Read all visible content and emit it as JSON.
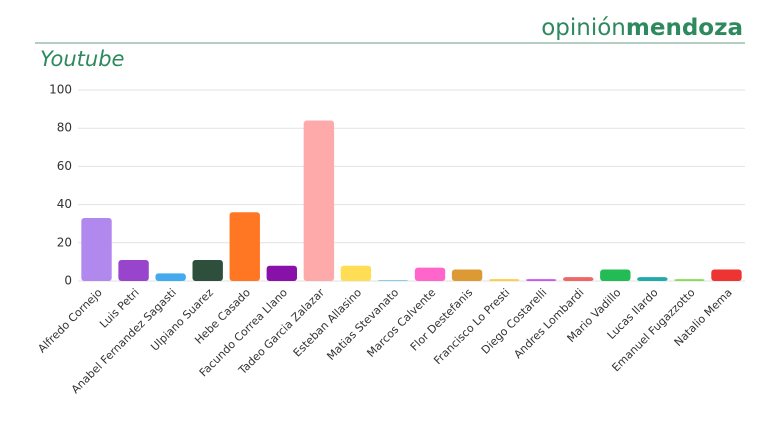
{
  "header": {
    "brand_light": "opinión",
    "brand_bold": "mendoza"
  },
  "chart_data": {
    "type": "bar",
    "title": "Youtube",
    "categories": [
      "Alfredo Cornejo",
      "Luis Petri",
      "Anabel Fernandez Sagasti",
      "Ulpiano Suarez",
      "Hebe Casado",
      "Facundo Correa Llano",
      "Tadeo Garcia Zalazar",
      "Esteban Allasino",
      "Matias Stevanato",
      "Marcos Calvente",
      "Flor Destefanis",
      "Francisco Lo Presti",
      "Diego Costarelli",
      "Andres Lombardi",
      "Mario Vadillo",
      "Lucas Ilardo",
      "Emanuel Fugazzotto",
      "Natalio Mema"
    ],
    "values": [
      33,
      11,
      4,
      11,
      36,
      8,
      84,
      8,
      0.5,
      7,
      6,
      1,
      1,
      2,
      6,
      2,
      1,
      6
    ],
    "colors": [
      "#b088ee",
      "#9944cc",
      "#44aaee",
      "#2d4f3c",
      "#ff7722",
      "#8811aa",
      "#ffaaaa",
      "#ffdd55",
      "#88ccee",
      "#ff66cc",
      "#dd9933",
      "#ffcc44",
      "#cc55ee",
      "#ee6666",
      "#22bb55",
      "#22aaaa",
      "#88dd55",
      "#ee3333"
    ],
    "ylim": [
      0,
      100
    ],
    "yticks": [
      0,
      20,
      40,
      60,
      80,
      100
    ],
    "grid": true
  }
}
